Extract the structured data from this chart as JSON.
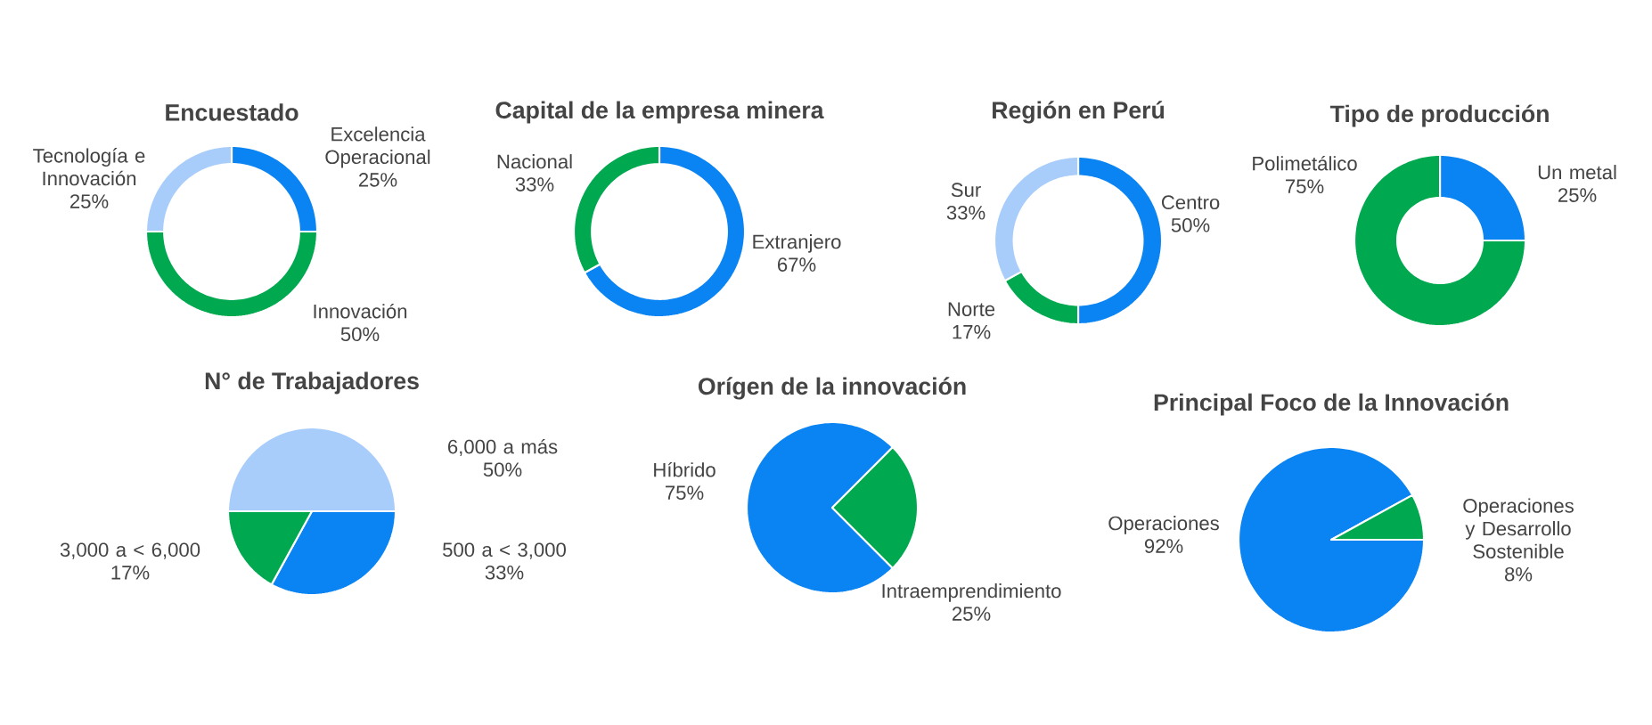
{
  "chart_data": [
    {
      "type": "donut",
      "title": "Encuestado",
      "categories": [
        "Excelencia Operacional",
        "Innovación",
        "Tecnología e Innovación"
      ],
      "values": [
        25,
        50,
        25
      ],
      "colors": [
        "#0b84f3",
        "#00a94f",
        "#a8cdfb"
      ],
      "value_labels": [
        "25%",
        "50%",
        "25%"
      ]
    },
    {
      "type": "donut",
      "title": "Capital de la empresa minera",
      "categories": [
        "Extranjero",
        "Nacional"
      ],
      "values": [
        67,
        33
      ],
      "colors": [
        "#0b84f3",
        "#00a94f"
      ],
      "value_labels": [
        "67%",
        "33%"
      ]
    },
    {
      "type": "donut",
      "title": "Región en Perú",
      "categories": [
        "Centro",
        "Norte",
        "Sur"
      ],
      "values": [
        50,
        17,
        33
      ],
      "colors": [
        "#0b84f3",
        "#00a94f",
        "#a8cdfb"
      ],
      "value_labels": [
        "50%",
        "17%",
        "33%"
      ]
    },
    {
      "type": "donut",
      "title": "Tipo de producción",
      "categories": [
        "Un metal",
        "Polimetálico"
      ],
      "values": [
        25,
        75
      ],
      "colors": [
        "#0b84f3",
        "#00a94f"
      ],
      "value_labels": [
        "25%",
        "75%"
      ]
    },
    {
      "type": "pie",
      "title": "N° de Trabajadores",
      "categories": [
        "500 a < 3,000",
        "3,000 a < 6,000",
        "6,000 a más"
      ],
      "values": [
        33,
        17,
        50
      ],
      "colors": [
        "#0b84f3",
        "#00a94f",
        "#a8cdfb"
      ],
      "value_labels": [
        "33%",
        "17%",
        "50%"
      ]
    },
    {
      "type": "pie",
      "title": "Orígen de la innovación",
      "categories": [
        "Híbrido",
        "Intraemprendimiento"
      ],
      "values": [
        75,
        25
      ],
      "colors": [
        "#0b84f3",
        "#00a94f"
      ],
      "value_labels": [
        "75%",
        "25%"
      ]
    },
    {
      "type": "pie",
      "title": "Principal Foco de la Innovación",
      "categories": [
        "Operaciones",
        "Operaciones y Desarrollo Sostenible"
      ],
      "values": [
        92,
        8
      ],
      "colors": [
        "#0b84f3",
        "#00a94f"
      ],
      "value_labels": [
        "92%",
        "8%"
      ]
    }
  ]
}
